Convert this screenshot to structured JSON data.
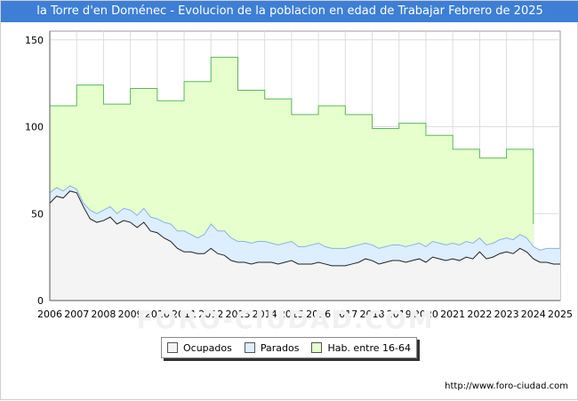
{
  "title": "la Torre d'en Doménec - Evolucion de la poblacion en edad de Trabajar Febrero de 2025",
  "watermark": "FORO-CIUDAD.COM",
  "footer_url": "http://www.foro-ciudad.com",
  "colors": {
    "hab_fill": "#e6ffcc",
    "hab_line": "#5ab85a",
    "parados_fill": "#ddeeff",
    "parados_line": "#86b4e6",
    "ocupados_fill": "#f4f4f4",
    "ocupados_line": "#222222",
    "title_bg": "#3d7fd6"
  },
  "chart_data": {
    "type": "area",
    "title": "la Torre d'en Doménec - Evolucion de la poblacion en edad de Trabajar Febrero de 2025",
    "xlabel": "",
    "ylabel": "",
    "xlim": [
      2006,
      2025
    ],
    "ylim": [
      0,
      155
    ],
    "x_ticks": [
      2006,
      2007,
      2008,
      2009,
      2010,
      2011,
      2012,
      2013,
      2014,
      2015,
      2016,
      2017,
      2018,
      2019,
      2020,
      2021,
      2022,
      2023,
      2024,
      2025
    ],
    "y_ticks": [
      0,
      50,
      100,
      150
    ],
    "grid": true,
    "legend": {
      "placement": "bottom",
      "entries": [
        "Ocupados",
        "Parados",
        "Hab. entre 16-64"
      ]
    },
    "series": [
      {
        "name": "Hab. entre 16-64",
        "step": true,
        "x": [
          2006,
          2007,
          2008,
          2009,
          2010,
          2011,
          2012,
          2013,
          2014,
          2015,
          2016,
          2017,
          2018,
          2019,
          2020,
          2021,
          2022,
          2023
        ],
        "values": [
          112,
          124,
          113,
          122,
          115,
          126,
          140,
          121,
          116,
          107,
          112,
          107,
          99,
          102,
          95,
          87,
          82,
          87
        ]
      },
      {
        "name": "Parados",
        "x": [
          2006,
          2006.25,
          2006.5,
          2006.75,
          2007,
          2007.25,
          2007.5,
          2007.75,
          2008,
          2008.25,
          2008.5,
          2008.75,
          2009,
          2009.25,
          2009.5,
          2009.75,
          2010,
          2010.25,
          2010.5,
          2010.75,
          2011,
          2011.25,
          2011.5,
          2011.75,
          2012,
          2012.25,
          2012.5,
          2012.75,
          2013,
          2013.25,
          2013.5,
          2013.75,
          2014,
          2014.25,
          2014.5,
          2014.75,
          2015,
          2015.25,
          2015.5,
          2015.75,
          2016,
          2016.25,
          2016.5,
          2016.75,
          2017,
          2017.25,
          2017.5,
          2017.75,
          2018,
          2018.25,
          2018.5,
          2018.75,
          2019,
          2019.25,
          2019.5,
          2019.75,
          2020,
          2020.25,
          2020.5,
          2020.75,
          2021,
          2021.25,
          2021.5,
          2021.75,
          2022,
          2022.25,
          2022.5,
          2022.75,
          2023,
          2023.25,
          2023.5,
          2023.75,
          2024,
          2024.25,
          2024.5,
          2024.75,
          2025
        ],
        "values": [
          62,
          65,
          63,
          66,
          64,
          56,
          52,
          50,
          52,
          54,
          50,
          53,
          52,
          49,
          53,
          48,
          47,
          45,
          44,
          40,
          40,
          38,
          36,
          38,
          44,
          40,
          40,
          36,
          34,
          34,
          33,
          34,
          34,
          33,
          32,
          33,
          34,
          31,
          31,
          32,
          33,
          31,
          30,
          30,
          30,
          31,
          32,
          33,
          32,
          30,
          31,
          32,
          32,
          31,
          32,
          33,
          31,
          34,
          33,
          32,
          33,
          32,
          34,
          33,
          36,
          32,
          33,
          35,
          36,
          35,
          38,
          36,
          31,
          29,
          30,
          30,
          30
        ]
      },
      {
        "name": "Ocupados",
        "x": [
          2006,
          2006.25,
          2006.5,
          2006.75,
          2007,
          2007.25,
          2007.5,
          2007.75,
          2008,
          2008.25,
          2008.5,
          2008.75,
          2009,
          2009.25,
          2009.5,
          2009.75,
          2010,
          2010.25,
          2010.5,
          2010.75,
          2011,
          2011.25,
          2011.5,
          2011.75,
          2012,
          2012.25,
          2012.5,
          2012.75,
          2013,
          2013.25,
          2013.5,
          2013.75,
          2014,
          2014.25,
          2014.5,
          2014.75,
          2015,
          2015.25,
          2015.5,
          2015.75,
          2016,
          2016.25,
          2016.5,
          2016.75,
          2017,
          2017.25,
          2017.5,
          2017.75,
          2018,
          2018.25,
          2018.5,
          2018.75,
          2019,
          2019.25,
          2019.5,
          2019.75,
          2020,
          2020.25,
          2020.5,
          2020.75,
          2021,
          2021.25,
          2021.5,
          2021.75,
          2022,
          2022.25,
          2022.5,
          2022.75,
          2023,
          2023.25,
          2023.5,
          2023.75,
          2024,
          2024.25,
          2024.5,
          2024.75,
          2025
        ],
        "values": [
          56,
          60,
          59,
          63,
          62,
          54,
          47,
          45,
          46,
          48,
          44,
          46,
          45,
          42,
          45,
          40,
          39,
          36,
          34,
          30,
          28,
          28,
          27,
          27,
          30,
          27,
          26,
          23,
          22,
          22,
          21,
          22,
          22,
          22,
          21,
          22,
          23,
          21,
          21,
          21,
          22,
          21,
          20,
          20,
          20,
          21,
          22,
          24,
          23,
          21,
          22,
          23,
          23,
          22,
          23,
          24,
          22,
          25,
          24,
          23,
          24,
          23,
          25,
          24,
          28,
          24,
          25,
          27,
          28,
          27,
          30,
          28,
          24,
          22,
          22,
          21,
          21
        ]
      }
    ]
  }
}
